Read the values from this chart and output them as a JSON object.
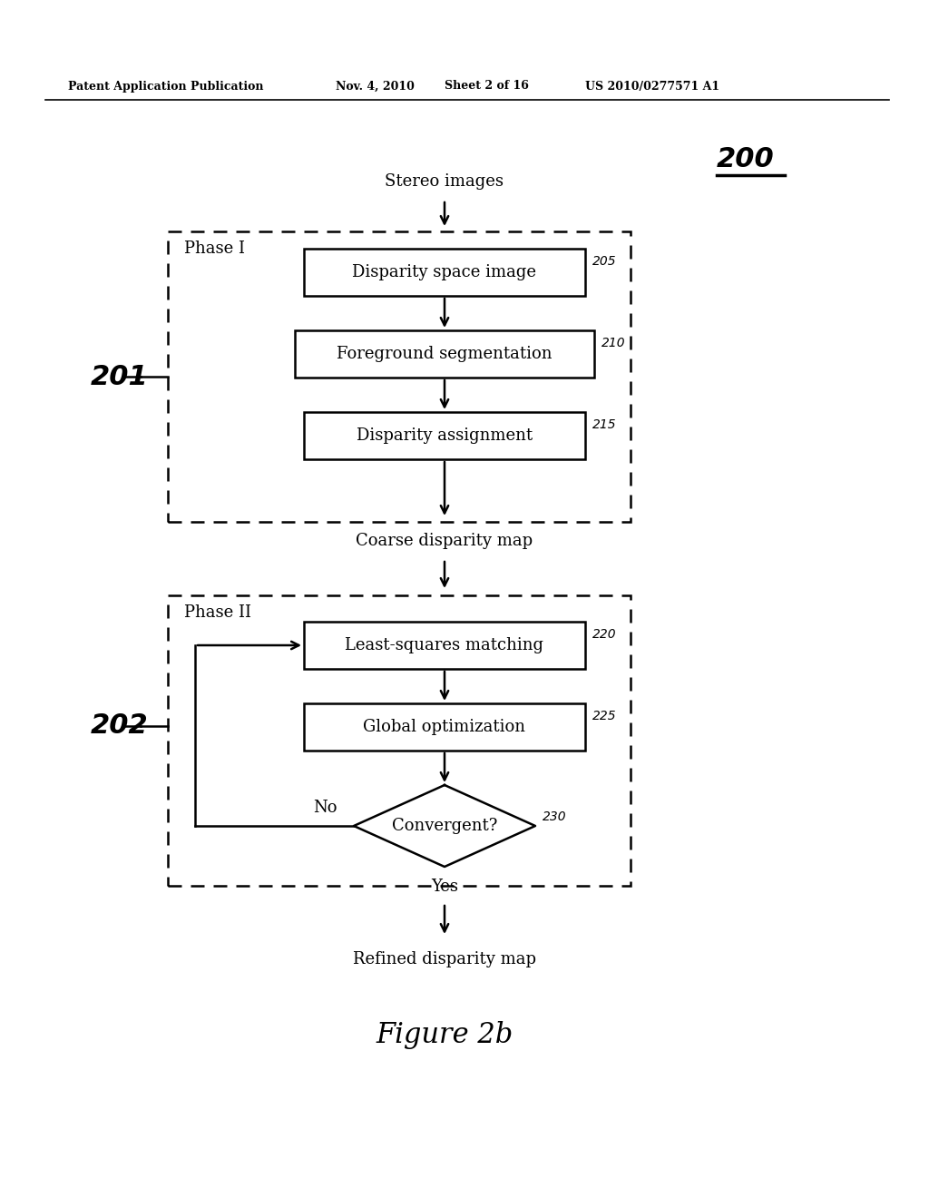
{
  "bg_color": "#ffffff",
  "header_text": "Patent Application Publication",
  "header_date": "Nov. 4, 2010",
  "header_sheet": "Sheet 2 of 16",
  "header_patent": "US 2010/0277571 A1",
  "figure_label": "Figure 2b",
  "diagram_ref": "200",
  "phase1_label": "Phase I",
  "phase1_ref": "201",
  "phase2_label": "Phase II",
  "phase2_ref": "202",
  "stereo_images": "Stereo images",
  "coarse_map": "Coarse disparity map",
  "refined_map": "Refined disparity map",
  "box1_text": "Disparity space image",
  "box1_ref": "205",
  "box2_text": "Foreground segmentation",
  "box2_ref": "210",
  "box3_text": "Disparity assignment",
  "box3_ref": "215",
  "box4_text": "Least-squares matching",
  "box4_ref": "220",
  "box5_text": "Global optimization",
  "box5_ref": "225",
  "diamond_text": "Convergent?",
  "diamond_ref": "230",
  "no_label": "No",
  "yes_label": "Yes"
}
